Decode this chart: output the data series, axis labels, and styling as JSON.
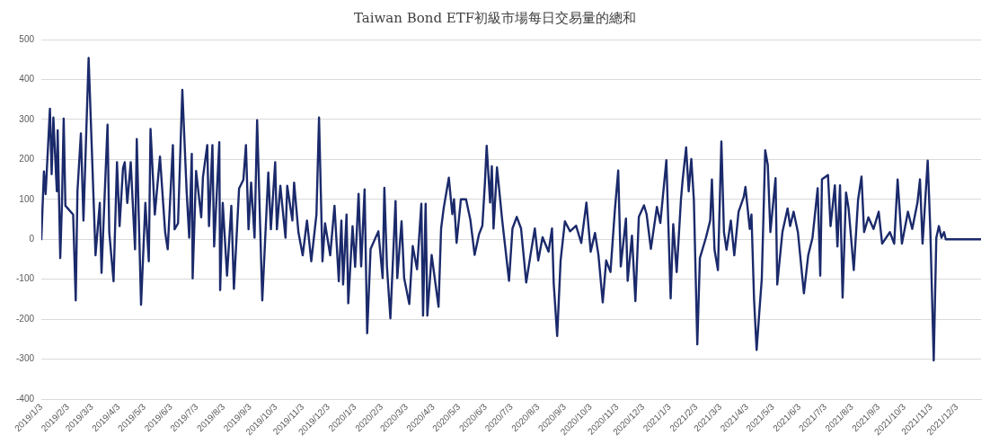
{
  "chart_data": {
    "type": "line",
    "title": "Taiwan Bond ETF初級市場每日交易量的總和",
    "x": [
      "2019-01-03",
      "2019-01-06",
      "2019-01-08",
      "2019-01-13",
      "2019-01-15",
      "2019-01-17",
      "2019-01-21",
      "2019-01-22",
      "2019-01-25",
      "2019-01-27",
      "2019-01-29",
      "2019-01-31",
      "2019-02-09",
      "2019-02-12",
      "2019-02-14",
      "2019-02-18",
      "2019-02-21",
      "2019-02-27",
      "2019-03-06",
      "2019-03-07",
      "2019-03-12",
      "2019-03-14",
      "2019-03-21",
      "2019-03-23",
      "2019-03-28",
      "2019-04-01",
      "2019-04-04",
      "2019-04-08",
      "2019-04-10",
      "2019-04-13",
      "2019-04-17",
      "2019-04-22",
      "2019-04-24",
      "2019-04-29",
      "2019-05-04",
      "2019-05-08",
      "2019-05-10",
      "2019-05-15",
      "2019-05-21",
      "2019-05-27",
      "2019-05-30",
      "2019-06-05",
      "2019-06-07",
      "2019-06-11",
      "2019-06-16",
      "2019-06-21",
      "2019-06-24",
      "2019-06-27",
      "2019-06-28",
      "2019-07-02",
      "2019-07-08",
      "2019-07-10",
      "2019-07-15",
      "2019-07-17",
      "2019-07-21",
      "2019-07-23",
      "2019-07-29",
      "2019-07-30",
      "2019-08-02",
      "2019-08-07",
      "2019-08-12",
      "2019-08-15",
      "2019-08-21",
      "2019-08-26",
      "2019-08-29",
      "2019-09-01",
      "2019-09-04",
      "2019-09-08",
      "2019-09-11",
      "2019-09-17",
      "2019-09-24",
      "2019-09-27",
      "2019-10-02",
      "2019-10-04",
      "2019-10-08",
      "2019-10-14",
      "2019-10-16",
      "2019-10-22",
      "2019-10-24",
      "2019-10-29",
      "2019-11-03",
      "2019-11-08",
      "2019-11-13",
      "2019-11-19",
      "2019-11-22",
      "2019-11-26",
      "2019-11-29",
      "2019-12-05",
      "2019-12-10",
      "2019-12-15",
      "2019-12-18",
      "2019-12-20",
      "2019-12-24",
      "2019-12-26",
      "2019-12-31",
      "2020-01-03",
      "2020-01-07",
      "2020-01-10",
      "2020-01-14",
      "2020-01-17",
      "2020-01-21",
      "2020-01-30",
      "2020-02-04",
      "2020-02-06",
      "2020-02-09",
      "2020-02-13",
      "2020-02-19",
      "2020-02-21",
      "2020-02-26",
      "2020-02-29",
      "2020-03-06",
      "2020-03-10",
      "2020-03-15",
      "2020-03-20",
      "2020-03-22",
      "2020-03-25",
      "2020-03-27",
      "2020-04-01",
      "2020-04-09",
      "2020-04-12",
      "2020-04-15",
      "2020-04-21",
      "2020-04-25",
      "2020-04-27",
      "2020-04-30",
      "2020-05-05",
      "2020-05-11",
      "2020-05-16",
      "2020-05-21",
      "2020-05-26",
      "2020-05-30",
      "2020-06-02",
      "2020-06-04",
      "2020-06-08",
      "2020-06-10",
      "2020-06-12",
      "2020-06-16",
      "2020-06-22",
      "2020-06-30",
      "2020-07-04",
      "2020-07-09",
      "2020-07-14",
      "2020-07-20",
      "2020-07-25",
      "2020-07-30",
      "2020-08-03",
      "2020-08-08",
      "2020-08-15",
      "2020-08-19",
      "2020-08-21",
      "2020-08-25",
      "2020-08-29",
      "2020-09-03",
      "2020-09-09",
      "2020-09-16",
      "2020-09-22",
      "2020-09-28",
      "2020-10-03",
      "2020-10-08",
      "2020-10-12",
      "2020-10-17",
      "2020-10-21",
      "2020-10-26",
      "2020-10-31",
      "2020-11-04",
      "2020-11-07",
      "2020-11-13",
      "2020-11-15",
      "2020-11-20",
      "2020-11-24",
      "2020-11-28",
      "2020-12-04",
      "2020-12-07",
      "2020-12-12",
      "2020-12-19",
      "2020-12-23",
      "2020-12-30",
      "2021-01-04",
      "2021-01-07",
      "2021-01-11",
      "2021-01-16",
      "2021-01-18",
      "2021-01-22",
      "2021-01-25",
      "2021-01-28",
      "2021-01-31",
      "2021-02-04",
      "2021-02-07",
      "2021-02-14",
      "2021-02-19",
      "2021-02-21",
      "2021-02-24",
      "2021-02-28",
      "2021-03-04",
      "2021-03-07",
      "2021-03-10",
      "2021-03-15",
      "2021-03-19",
      "2021-03-24",
      "2021-03-30",
      "2021-04-01",
      "2021-04-06",
      "2021-04-08",
      "2021-04-11",
      "2021-04-14",
      "2021-04-17",
      "2021-04-20",
      "2021-04-24",
      "2021-04-27",
      "2021-04-30",
      "2021-05-06",
      "2021-05-08",
      "2021-05-14",
      "2021-05-20",
      "2021-05-23",
      "2021-05-27",
      "2021-06-01",
      "2021-06-08",
      "2021-06-13",
      "2021-06-18",
      "2021-06-24",
      "2021-06-27",
      "2021-06-29",
      "2021-07-06",
      "2021-07-09",
      "2021-07-14",
      "2021-07-17",
      "2021-07-20",
      "2021-07-23",
      "2021-07-27",
      "2021-07-30",
      "2021-08-05",
      "2021-08-10",
      "2021-08-14",
      "2021-08-17",
      "2021-08-22",
      "2021-08-28",
      "2021-09-03",
      "2021-09-07",
      "2021-09-16",
      "2021-09-21",
      "2021-09-25",
      "2021-09-30",
      "2021-10-07",
      "2021-10-12",
      "2021-10-18",
      "2021-10-21",
      "2021-10-24",
      "2021-10-30",
      "2021-11-02",
      "2021-11-06",
      "2021-11-09",
      "2021-11-12",
      "2021-11-15",
      "2021-11-18",
      "2021-11-20",
      "2021-12-31"
    ],
    "series": [
      {
        "color": "#1b2a6b",
        "values": [
          0,
          170,
          113,
          327,
          163,
          305,
          120,
          273,
          -47,
          91,
          302,
          84,
          62,
          -153,
          120,
          265,
          47,
          454,
          25,
          -40,
          91,
          -84,
          287,
          18,
          -105,
          193,
          33,
          178,
          193,
          91,
          193,
          -25,
          251,
          -164,
          91,
          -55,
          276,
          62,
          207,
          18,
          -25,
          236,
          25,
          40,
          374,
          120,
          4,
          214,
          -98,
          171,
          55,
          156,
          236,
          33,
          236,
          -18,
          243,
          -127,
          91,
          -91,
          84,
          -124,
          127,
          149,
          236,
          25,
          142,
          4,
          298,
          -153,
          167,
          25,
          193,
          25,
          134,
          4,
          134,
          47,
          142,
          18,
          -40,
          47,
          -55,
          62,
          305,
          -55,
          40,
          -40,
          84,
          -105,
          47,
          -113,
          62,
          -160,
          33,
          -69,
          114,
          -68,
          125,
          -235,
          -24,
          20,
          -97,
          129,
          -68,
          -198,
          96,
          -97,
          45,
          -97,
          -162,
          -17,
          -75,
          89,
          -191,
          89,
          -191,
          -39,
          -169,
          27,
          78,
          154,
          63,
          100,
          -9,
          100,
          100,
          49,
          -39,
          12,
          34,
          143,
          234,
          92,
          183,
          27,
          180,
          49,
          -104,
          27,
          56,
          27,
          -108,
          -39,
          27,
          -53,
          5,
          -31,
          27,
          -111,
          -242,
          -53,
          45,
          20,
          34,
          -9,
          92,
          -31,
          16,
          -39,
          -158,
          -53,
          -82,
          70,
          172,
          -68,
          52,
          -104,
          9,
          -155,
          56,
          85,
          63,
          -24,
          81,
          41,
          198,
          -148,
          38,
          -82,
          100,
          150,
          230,
          120,
          201,
          99,
          -263,
          -47,
          4,
          47,
          150,
          -26,
          -77,
          245,
          18,
          -26,
          47,
          -40,
          69,
          106,
          131,
          26,
          62,
          -150,
          -277,
          -186,
          -99,
          223,
          186,
          18,
          153,
          -113,
          18,
          77,
          33,
          69,
          18,
          -135,
          -40,
          4,
          128,
          -91,
          150,
          161,
          33,
          135,
          -18,
          135,
          -146,
          117,
          77,
          -77,
          99,
          157,
          18,
          55,
          26,
          69,
          -11,
          18,
          -11,
          150,
          -11,
          69,
          26,
          91,
          150,
          -11,
          197,
          26,
          -303,
          4,
          33,
          4,
          18,
          0,
          0
        ]
      }
    ],
    "xlim": [
      "2019-01-03",
      "2021-12-31"
    ],
    "xticks": [
      {
        "value": "2019-01-03",
        "label": "2019/1/3"
      },
      {
        "value": "2019-02-03",
        "label": "2019/2/3"
      },
      {
        "value": "2019-03-03",
        "label": "2019/3/3"
      },
      {
        "value": "2019-04-03",
        "label": "2019/4/3"
      },
      {
        "value": "2019-05-03",
        "label": "2019/5/3"
      },
      {
        "value": "2019-06-03",
        "label": "2019/6/3"
      },
      {
        "value": "2019-07-03",
        "label": "2019/7/3"
      },
      {
        "value": "2019-08-03",
        "label": "2019/8/3"
      },
      {
        "value": "2019-09-03",
        "label": "2019/9/3"
      },
      {
        "value": "2019-10-03",
        "label": "2019/10/3"
      },
      {
        "value": "2019-11-03",
        "label": "2019/11/3"
      },
      {
        "value": "2019-12-03",
        "label": "2019/12/3"
      },
      {
        "value": "2020-01-03",
        "label": "2020/1/3"
      },
      {
        "value": "2020-02-03",
        "label": "2020/2/3"
      },
      {
        "value": "2020-03-03",
        "label": "2020/3/3"
      },
      {
        "value": "2020-04-03",
        "label": "2020/4/3"
      },
      {
        "value": "2020-05-03",
        "label": "2020/5/3"
      },
      {
        "value": "2020-06-03",
        "label": "2020/6/3"
      },
      {
        "value": "2020-07-03",
        "label": "2020/7/3"
      },
      {
        "value": "2020-08-03",
        "label": "2020/8/3"
      },
      {
        "value": "2020-09-03",
        "label": "2020/9/3"
      },
      {
        "value": "2020-10-03",
        "label": "2020/10/3"
      },
      {
        "value": "2020-11-03",
        "label": "2020/11/3"
      },
      {
        "value": "2020-12-03",
        "label": "2020/12/3"
      },
      {
        "value": "2021-01-03",
        "label": "2021/1/3"
      },
      {
        "value": "2021-02-03",
        "label": "2021/2/3"
      },
      {
        "value": "2021-03-03",
        "label": "2021/3/3"
      },
      {
        "value": "2021-04-03",
        "label": "2021/4/3"
      },
      {
        "value": "2021-05-03",
        "label": "2021/5/3"
      },
      {
        "value": "2021-06-03",
        "label": "2021/6/3"
      },
      {
        "value": "2021-07-03",
        "label": "2021/7/3"
      },
      {
        "value": "2021-08-03",
        "label": "2021/8/3"
      },
      {
        "value": "2021-09-03",
        "label": "2021/9/3"
      },
      {
        "value": "2021-10-03",
        "label": "2021/10/3"
      },
      {
        "value": "2021-11-03",
        "label": "2021/11/3"
      },
      {
        "value": "2021-12-03",
        "label": "2021/12/3"
      }
    ],
    "ylim": [
      -400,
      500
    ],
    "yticks": [
      -400,
      -300,
      -200,
      -100,
      0,
      100,
      200,
      300,
      400,
      500
    ],
    "grid": "y",
    "legend": false,
    "marker": "none",
    "line_style": "solid"
  }
}
